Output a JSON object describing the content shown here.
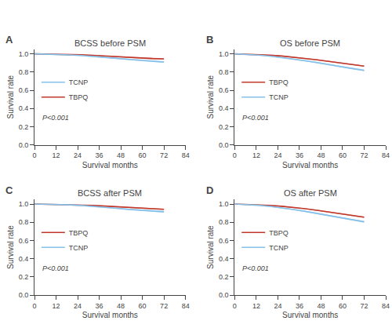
{
  "chart_data": [
    {
      "type": "line",
      "title": "BCSS before PSM",
      "xlabel": "Survival months",
      "ylabel": "Survival rate",
      "annotations": [
        "A",
        "P<0.001"
      ],
      "x": [
        0,
        6.545454545454546,
        13.090909090909092,
        19.636363636363637,
        26.181818181818183,
        32.72727272727273,
        39.27272727272727,
        45.81818181818182,
        52.36363636363637,
        58.90909090909091,
        65.45454545454545,
        72
      ],
      "series": [
        {
          "type": "band",
          "color": "#e8a0a0",
          "lower": [
            0.997,
            0.995,
            0.992,
            0.989,
            0.984,
            0.978,
            0.97,
            0.962,
            0.956,
            0.949,
            0.941,
            0.938
          ],
          "upper": [
            1.003,
            1.001,
            1.0,
            0.997,
            0.994,
            0.988,
            0.98,
            0.974,
            0.968,
            0.961,
            0.955,
            0.952
          ]
        },
        {
          "type": "band",
          "color": "#b8d9f0",
          "lower": [
            0.997,
            0.993,
            0.988,
            0.982,
            0.975,
            0.965,
            0.954,
            0.942,
            0.93,
            0.918,
            0.908,
            0.9
          ],
          "upper": [
            1.003,
            1.001,
            0.998,
            0.994,
            0.987,
            0.979,
            0.968,
            0.958,
            0.946,
            0.936,
            0.926,
            0.92
          ]
        },
        {
          "type": "line",
          "name": "TBPQ",
          "color": "#c0392b",
          "values": [
            1.0,
            0.998,
            0.996,
            0.993,
            0.989,
            0.983,
            0.975,
            0.968,
            0.962,
            0.955,
            0.948,
            0.945
          ]
        },
        {
          "type": "line",
          "name": "TCNP",
          "color": "#85c1e9",
          "values": [
            1.0,
            0.997,
            0.993,
            0.988,
            0.981,
            0.972,
            0.961,
            0.95,
            0.938,
            0.927,
            0.917,
            0.91
          ]
        }
      ],
      "xlim": [
        0,
        84
      ],
      "ylim": [
        0.0,
        1.05
      ],
      "xticks": [
        0,
        12,
        24,
        36,
        48,
        60,
        72,
        84
      ],
      "yticks": [
        {
          "value": 0.0,
          "label": "0.0"
        },
        0.2,
        0.4,
        0.6,
        0.8,
        {
          "value": 1.0,
          "label": "1.0"
        }
      ],
      "grid": false,
      "legend": "lower left"
    },
    {
      "type": "line",
      "title": "OS before PSM",
      "xlabel": "Survival months",
      "ylabel": "Survival rate",
      "annotations": [
        "B",
        "P<0.001"
      ],
      "x": [
        0,
        6.545454545454546,
        13.090909090909092,
        19.636363636363637,
        26.181818181818183,
        32.72727272727273,
        39.27272727272727,
        45.81818181818182,
        52.36363636363637,
        58.90909090909091,
        65.45454545454545,
        72
      ],
      "series": [
        {
          "type": "band",
          "color": "#e8a0a0",
          "lower": [
            0.997,
            0.994,
            0.988,
            0.981,
            0.971,
            0.959,
            0.945,
            0.928,
            0.911,
            0.892,
            0.873,
            0.858
          ],
          "upper": [
            1.003,
            1.0,
            0.996,
            0.989,
            0.981,
            0.969,
            0.955,
            0.94,
            0.923,
            0.904,
            0.887,
            0.872
          ]
        },
        {
          "type": "band",
          "color": "#b8d9f0",
          "lower": [
            0.997,
            0.991,
            0.981,
            0.969,
            0.954,
            0.936,
            0.917,
            0.896,
            0.872,
            0.849,
            0.829,
            0.808
          ],
          "upper": [
            1.003,
            0.999,
            0.991,
            0.981,
            0.966,
            0.95,
            0.931,
            0.912,
            0.888,
            0.867,
            0.847,
            0.828
          ]
        },
        {
          "type": "line",
          "name": "TBPQ",
          "color": "#c0392b",
          "values": [
            1.0,
            0.997,
            0.992,
            0.985,
            0.976,
            0.964,
            0.95,
            0.934,
            0.917,
            0.898,
            0.88,
            0.865
          ]
        },
        {
          "type": "line",
          "name": "TCNP",
          "color": "#85c1e9",
          "values": [
            1.0,
            0.995,
            0.986,
            0.975,
            0.96,
            0.943,
            0.924,
            0.904,
            0.88,
            0.858,
            0.838,
            0.818
          ]
        }
      ],
      "xlim": [
        0,
        84
      ],
      "ylim": [
        0.0,
        1.05
      ],
      "xticks": [
        0,
        12,
        24,
        36,
        48,
        60,
        72,
        84
      ],
      "yticks": [
        {
          "value": 0.0,
          "label": "0.0"
        },
        0.2,
        0.4,
        0.6,
        0.8,
        {
          "value": 1.0,
          "label": "1.0"
        }
      ],
      "grid": false,
      "legend": "lower left"
    },
    {
      "type": "line",
      "title": "BCSS after PSM",
      "xlabel": "Survival months",
      "ylabel": "Survival rate",
      "annotations": [
        "C",
        "P<0.001"
      ],
      "x": [
        0,
        6.545454545454546,
        13.090909090909092,
        19.636363636363637,
        26.181818181818183,
        32.72727272727273,
        39.27272727272727,
        45.81818181818182,
        52.36363636363637,
        58.90909090909091,
        65.45454545454545,
        72
      ],
      "series": [
        {
          "type": "band",
          "color": "#e8a0a0",
          "lower": [
            0.997,
            0.995,
            0.992,
            0.989,
            0.984,
            0.979,
            0.972,
            0.964,
            0.957,
            0.95,
            0.942,
            0.935
          ],
          "upper": [
            1.003,
            1.001,
            1.0,
            0.997,
            0.994,
            0.989,
            0.982,
            0.976,
            0.969,
            0.962,
            0.956,
            0.949
          ]
        },
        {
          "type": "band",
          "color": "#b8d9f0",
          "lower": [
            0.997,
            0.994,
            0.99,
            0.984,
            0.978,
            0.968,
            0.958,
            0.945,
            0.933,
            0.922,
            0.913,
            0.905
          ],
          "upper": [
            1.003,
            1.002,
            1.0,
            0.996,
            0.99,
            0.982,
            0.972,
            0.961,
            0.949,
            0.94,
            0.931,
            0.925
          ]
        },
        {
          "type": "line",
          "name": "TBPQ",
          "color": "#c0392b",
          "values": [
            1.0,
            0.998,
            0.996,
            0.993,
            0.989,
            0.984,
            0.977,
            0.97,
            0.963,
            0.956,
            0.949,
            0.942
          ]
        },
        {
          "type": "line",
          "name": "TCNP",
          "color": "#85c1e9",
          "values": [
            1.0,
            0.998,
            0.995,
            0.99,
            0.984,
            0.975,
            0.965,
            0.953,
            0.941,
            0.931,
            0.922,
            0.915
          ]
        }
      ],
      "xlim": [
        0,
        84
      ],
      "ylim": [
        0.0,
        1.05
      ],
      "xticks": [
        0,
        12,
        24,
        36,
        48,
        60,
        72,
        84
      ],
      "yticks": [
        {
          "value": 0.0,
          "label": "0.0"
        },
        0.2,
        0.4,
        0.6,
        0.8,
        {
          "value": 1.0,
          "label": "1.0"
        }
      ],
      "grid": false,
      "legend": "lower left"
    },
    {
      "type": "line",
      "title": "OS after PSM",
      "xlabel": "Survival months",
      "ylabel": "Survival rate",
      "annotations": [
        "D",
        "P<0.001"
      ],
      "x": [
        0,
        6.545454545454546,
        13.090909090909092,
        19.636363636363637,
        26.181818181818183,
        32.72727272727273,
        39.27272727272727,
        45.81818181818182,
        52.36363636363637,
        58.90909090909091,
        65.45454545454545,
        72
      ],
      "series": [
        {
          "type": "band",
          "color": "#e8a0a0",
          "lower": [
            0.997,
            0.994,
            0.988,
            0.981,
            0.97,
            0.958,
            0.943,
            0.925,
            0.907,
            0.887,
            0.866,
            0.848
          ],
          "upper": [
            1.003,
            1.0,
            0.996,
            0.989,
            0.98,
            0.968,
            0.953,
            0.937,
            0.919,
            0.899,
            0.88,
            0.862
          ]
        },
        {
          "type": "band",
          "color": "#b8d9f0",
          "lower": [
            0.997,
            0.991,
            0.981,
            0.968,
            0.952,
            0.933,
            0.912,
            0.888,
            0.863,
            0.838,
            0.816,
            0.795
          ],
          "upper": [
            1.003,
            0.999,
            0.991,
            0.98,
            0.964,
            0.947,
            0.926,
            0.904,
            0.879,
            0.856,
            0.834,
            0.815
          ]
        },
        {
          "type": "line",
          "name": "TBPQ",
          "color": "#c0392b",
          "values": [
            1.0,
            0.997,
            0.992,
            0.985,
            0.975,
            0.963,
            0.948,
            0.931,
            0.913,
            0.893,
            0.873,
            0.855
          ]
        },
        {
          "type": "line",
          "name": "TCNP",
          "color": "#85c1e9",
          "values": [
            1.0,
            0.995,
            0.986,
            0.974,
            0.958,
            0.94,
            0.919,
            0.896,
            0.871,
            0.847,
            0.825,
            0.805
          ]
        }
      ],
      "xlim": [
        0,
        84
      ],
      "ylim": [
        0.0,
        1.05
      ],
      "xticks": [
        0,
        12,
        24,
        36,
        48,
        60,
        72,
        84
      ],
      "yticks": [
        {
          "value": 0.0,
          "label": "0.0"
        },
        0.2,
        0.4,
        0.6,
        0.8,
        {
          "value": 1.0,
          "label": "1.0"
        }
      ],
      "grid": false,
      "legend": "lower left"
    }
  ]
}
